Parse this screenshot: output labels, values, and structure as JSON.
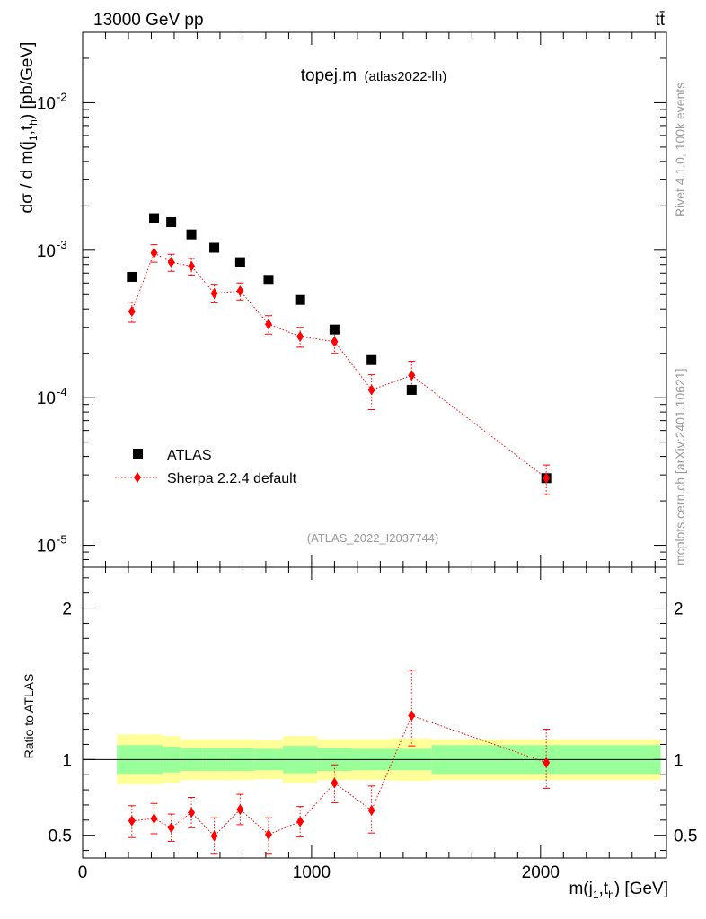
{
  "header": {
    "energy_label": "13000 GeV pp",
    "process_label": "tt̄"
  },
  "side_labels": {
    "rivet": "Rivet 4.1.0,  100k events",
    "mcplots": "mcplots.cern.ch [arXiv:2401.10621]"
  },
  "colors": {
    "data": "#000000",
    "mc": "#ff0000",
    "band_inner": "#99ff99",
    "band_outer": "#ffff99",
    "watermark": "#999999"
  },
  "chart_data": [
    {
      "type": "scatter",
      "panel": "main",
      "title": "topej.m",
      "subtitle": "(atlas2022-lh)",
      "watermark": "(ATLAS_2022_I2037744)",
      "ylabel": "dσ / d m(j1,th) [pb/GeV]",
      "yscale": "log",
      "xlim": [
        0,
        2550
      ],
      "ylim": [
        7.1e-06,
        0.03
      ],
      "y_tick_labels": [
        "10^-5",
        "10^-4",
        "10^-3",
        "10^-2"
      ],
      "x": [
        215,
        312,
        387,
        475,
        575,
        688,
        812,
        950,
        1100,
        1262,
        1437,
        2025
      ],
      "series": [
        {
          "name": "ATLAS",
          "style": "marker",
          "values": [
            0.00066,
            0.00165,
            0.00155,
            0.00128,
            0.00104,
            0.00083,
            0.00063,
            0.00046,
            0.00029,
            0.00018,
            0.000113,
            2.85e-05
          ]
        },
        {
          "name": "Sherpa 2.2.4 default",
          "style": "line-marker",
          "values": [
            0.000385,
            0.00096,
            0.00083,
            0.00078,
            0.00051,
            0.00053,
            0.000315,
            0.00026,
            0.00024,
            0.000113,
            0.000142,
            2.85e-05
          ],
          "err_lo": [
            6e-05,
            0.00013,
            0.00011,
            0.0001,
            7e-05,
            7e-05,
            4.5e-05,
            4e-05,
            4e-05,
            3e-05,
            3.5e-05,
            6.5e-06
          ],
          "err_hi": [
            6e-05,
            0.00013,
            0.00011,
            0.0001,
            7e-05,
            7e-05,
            4.5e-05,
            4e-05,
            4e-05,
            3e-05,
            3.5e-05,
            6.5e-06
          ]
        }
      ],
      "legend": [
        "ATLAS",
        "Sherpa 2.2.4 default"
      ],
      "legend_position": "lower-left"
    },
    {
      "type": "line",
      "panel": "ratio",
      "ylabel": "Ratio to ATLAS",
      "xlabel": "m(j1,th) [GeV]",
      "xlim": [
        0,
        2550
      ],
      "ylim": [
        0.35,
        2.27
      ],
      "x_ticks": [
        0,
        1000,
        2000
      ],
      "x_tick_labels": [
        "0",
        "1000",
        "2000"
      ],
      "y_ticks": [
        0.5,
        1,
        2
      ],
      "y_tick_labels": [
        "0.5",
        "1",
        "2"
      ],
      "bins": [
        150,
        350,
        425,
        525,
        625,
        750,
        875,
        1025,
        1175,
        1350,
        1525,
        2525
      ],
      "band_inner": [
        0.095,
        0.085,
        0.075,
        0.075,
        0.075,
        0.07,
        0.09,
        0.075,
        0.07,
        0.07,
        0.095
      ],
      "band_outer": [
        0.095,
        0.085,
        0.075,
        0.075,
        0.075,
        0.07,
        0.09,
        0.075,
        0.07,
        0.07,
        0.095
      ],
      "band_outer_extra": [
        0.07,
        0.07,
        0.06,
        0.06,
        0.06,
        0.06,
        0.065,
        0.06,
        0.065,
        0.07,
        0.04
      ],
      "x": [
        215,
        312,
        387,
        475,
        575,
        688,
        812,
        950,
        1100,
        1262,
        1437,
        2025
      ],
      "series": [
        {
          "name": "Sherpa 2.2.4 default",
          "values": [
            0.595,
            0.61,
            0.55,
            0.65,
            0.495,
            0.67,
            0.505,
            0.59,
            0.845,
            0.665,
            1.29,
            0.98
          ],
          "err_lo": [
            0.11,
            0.1,
            0.09,
            0.1,
            0.12,
            0.1,
            0.13,
            0.1,
            0.13,
            0.15,
            0.2,
            0.17
          ],
          "err_hi": [
            0.1,
            0.1,
            0.09,
            0.1,
            0.12,
            0.1,
            0.11,
            0.1,
            0.12,
            0.16,
            0.3,
            0.22
          ]
        }
      ]
    }
  ]
}
